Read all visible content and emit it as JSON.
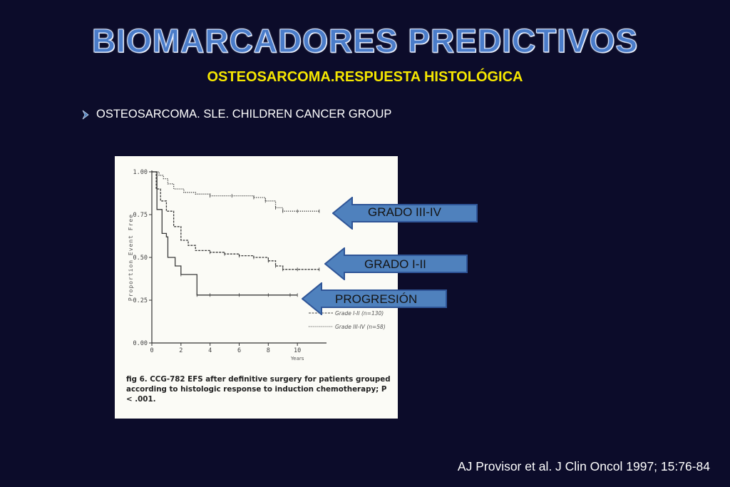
{
  "slide": {
    "title": "BIOMARCADORES PREDICTIVOS",
    "subtitle": "OSTEOSARCOMA.RESPUESTA HISTOLÓGICA",
    "bullet_icon": "chevron-right-icon",
    "bullet_text": "OSTEOSARCOMA. SLE. CHILDREN CANCER GROUP",
    "citation": "AJ Provisor et al. J Clin Oncol 1997; 15:76-84",
    "colors": {
      "background": "#0c0c2a",
      "title": "#4a7cc9",
      "subtitle": "#f5e600",
      "arrow_fill": "#4f81bd",
      "arrow_border": "#2f5597"
    }
  },
  "arrows": [
    {
      "label": "GRADO III-IV"
    },
    {
      "label": "GRADO I-II"
    },
    {
      "label": "PROGRESIÓN"
    }
  ],
  "figure": {
    "caption": "fig 6.   CCG-782 EFS after definitive surgery for patients grouped according to histologic response to induction chemotherapy; P < .001."
  },
  "chart_data": {
    "type": "line",
    "title": "",
    "xlabel": "Years",
    "ylabel": "Proportion Event Free",
    "xlim": [
      0,
      12
    ],
    "ylim": [
      0,
      1
    ],
    "x_ticks": [
      "0",
      "2",
      "4",
      "6",
      "8",
      "10"
    ],
    "y_ticks": [
      "0.00",
      "0.25",
      "0.50",
      "0.75",
      "1.00"
    ],
    "legend_placement": "lower-right",
    "series": [
      {
        "name": "Grade III-IV (n=58)",
        "style": "dotted",
        "x": [
          0,
          0.5,
          0.8,
          1.1,
          1.5,
          2.2,
          3.0,
          4.0,
          5.5,
          7.0,
          7.8,
          8.5,
          9.0,
          10.0,
          11.5
        ],
        "y": [
          1.0,
          0.98,
          0.96,
          0.93,
          0.9,
          0.88,
          0.87,
          0.86,
          0.86,
          0.85,
          0.83,
          0.79,
          0.77,
          0.77,
          0.77
        ]
      },
      {
        "name": "Grade I-II (n=130)",
        "style": "dashed",
        "x": [
          0,
          0.3,
          0.6,
          1.0,
          1.5,
          2.0,
          2.5,
          3.0,
          4.0,
          5.0,
          6.0,
          7.0,
          8.0,
          8.5,
          9.0,
          10.0,
          11.5
        ],
        "y": [
          1.0,
          0.9,
          0.83,
          0.77,
          0.68,
          0.6,
          0.57,
          0.54,
          0.53,
          0.52,
          0.51,
          0.5,
          0.48,
          0.45,
          0.43,
          0.43,
          0.43
        ]
      },
      {
        "name": "Progression",
        "style": "solid",
        "x": [
          0,
          0.35,
          0.7,
          1.0,
          1.1,
          1.6,
          2.0,
          3.1,
          4.0,
          6.0,
          8.0,
          9.5,
          10.0
        ],
        "y": [
          1.0,
          0.78,
          0.64,
          0.62,
          0.5,
          0.45,
          0.4,
          0.28,
          0.28,
          0.28,
          0.28,
          0.28,
          0.28
        ]
      }
    ]
  }
}
